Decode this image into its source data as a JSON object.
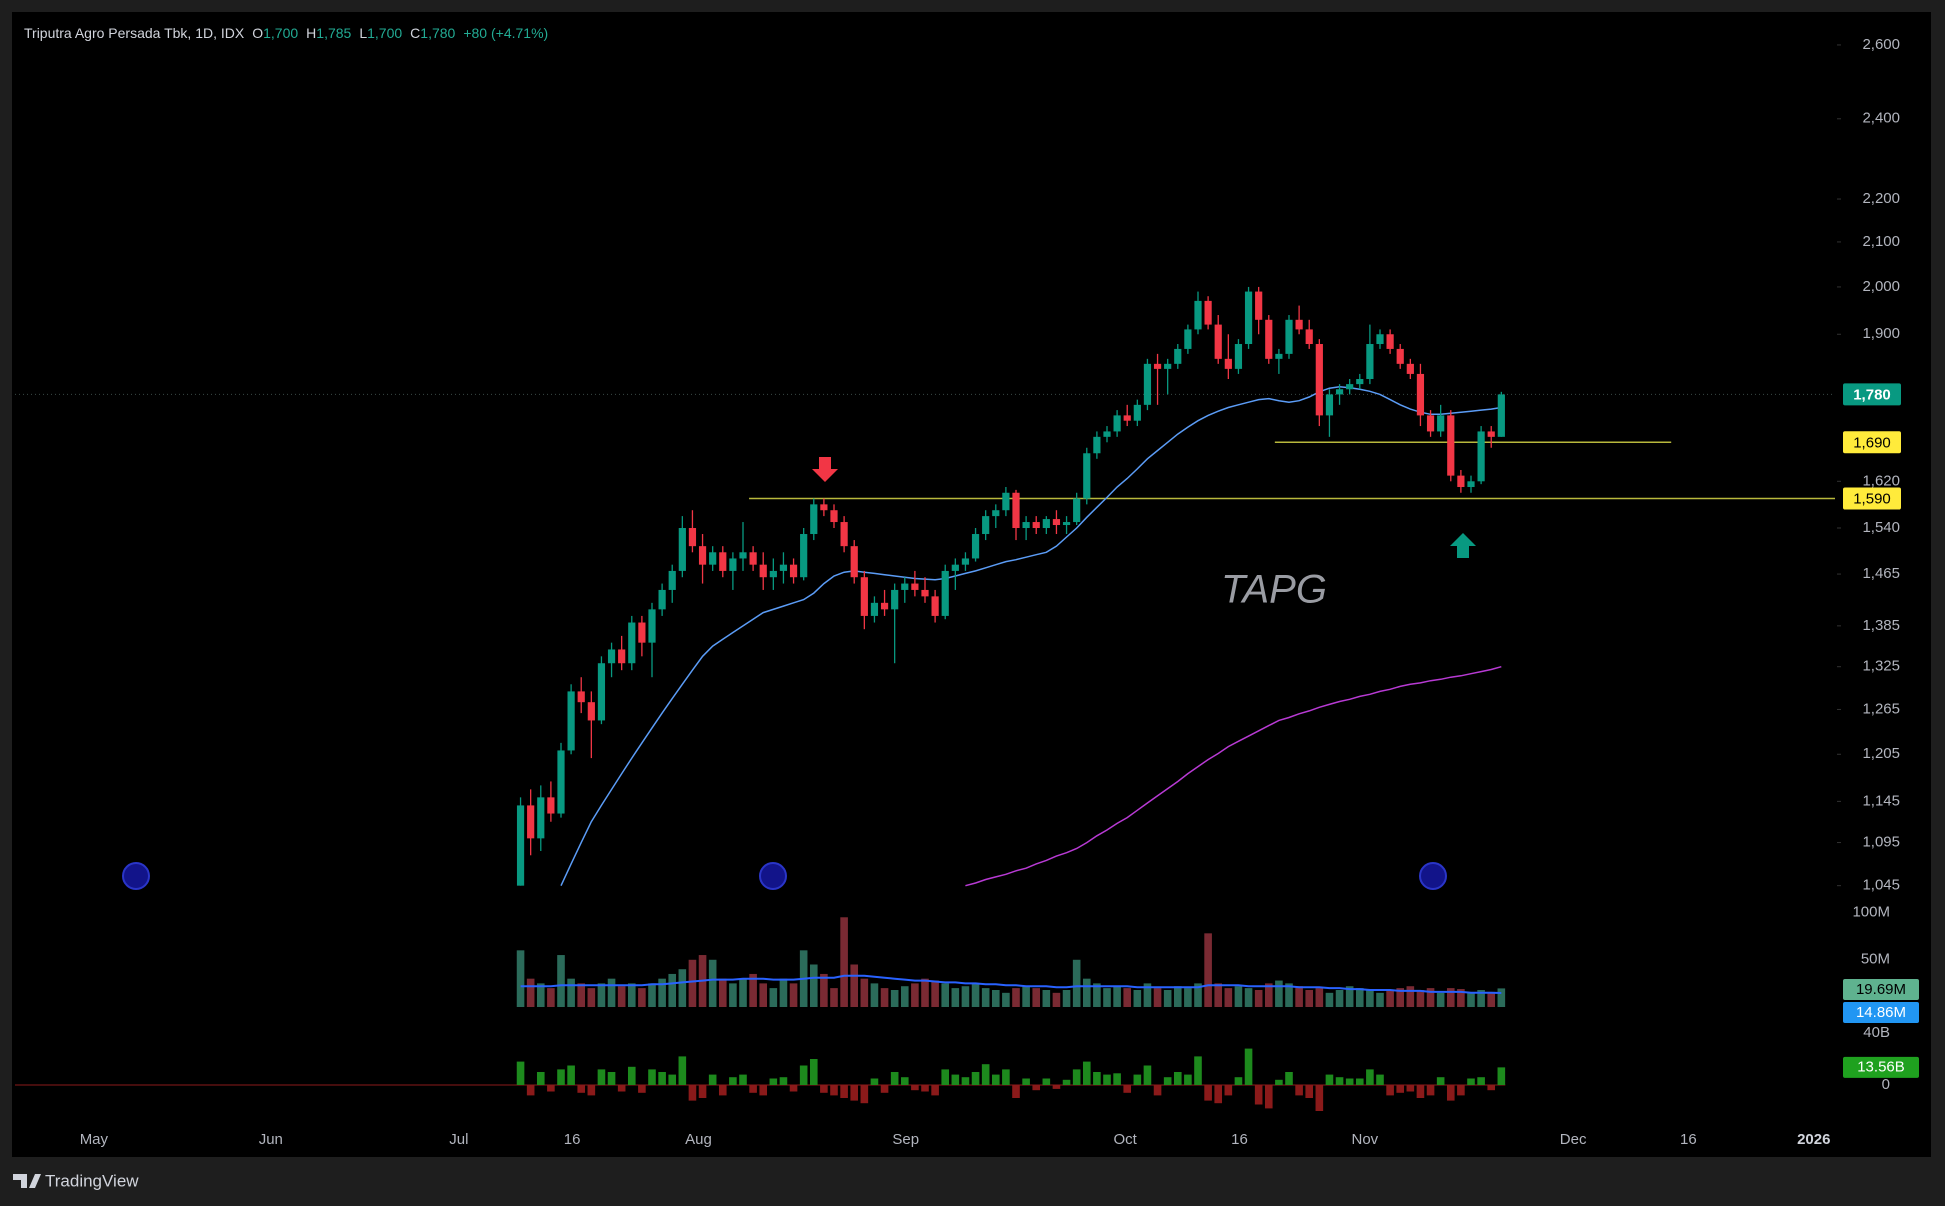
{
  "chart_data": {
    "type": "candlestick",
    "header": {
      "symbol": "Triputra Agro Persada Tbk, 1D, IDX",
      "o_label": "O",
      "open": "1,700",
      "h_label": "H",
      "high": "1,785",
      "l_label": "L",
      "low": "1,700",
      "c_label": "C",
      "close": "1,780",
      "change": "+80 (+4.71%)"
    },
    "watermark": "TAPG",
    "brand": "TradingView",
    "colors": {
      "up": "#089981",
      "down": "#f23645"
    },
    "x": [
      0,
      1,
      2,
      3,
      4,
      5,
      6,
      7,
      8,
      9,
      10,
      11,
      12,
      13,
      14,
      15,
      16,
      17,
      18,
      19,
      20,
      21,
      22,
      23,
      24,
      25,
      26,
      27,
      28,
      29,
      30,
      31,
      32,
      33,
      34,
      35,
      36,
      37,
      38,
      39,
      40,
      41,
      42,
      43,
      44,
      45,
      46,
      47,
      48,
      49,
      50,
      51,
      52,
      53,
      54,
      55,
      56,
      57,
      58,
      59,
      60,
      61,
      62,
      63,
      64,
      65,
      66,
      67,
      68,
      69,
      70,
      71,
      72,
      73,
      74,
      75,
      76,
      77,
      78,
      79,
      80,
      81,
      82,
      83,
      84,
      85,
      86,
      87,
      88,
      89,
      90,
      91,
      92,
      93,
      94,
      95,
      96,
      97
    ],
    "open": [
      1045,
      1140,
      1100,
      1150,
      1130,
      1210,
      1290,
      1275,
      1250,
      1330,
      1350,
      1330,
      1390,
      1360,
      1410,
      1440,
      1470,
      1540,
      1510,
      1480,
      1500,
      1470,
      1490,
      1500,
      1480,
      1460,
      1470,
      1480,
      1460,
      1530,
      1580,
      1570,
      1550,
      1510,
      1460,
      1400,
      1420,
      1410,
      1440,
      1450,
      1440,
      1430,
      1400,
      1470,
      1480,
      1490,
      1530,
      1560,
      1570,
      1600,
      1540,
      1550,
      1540,
      1555,
      1545,
      1550,
      1590,
      1670,
      1700,
      1710,
      1740,
      1730,
      1760,
      1840,
      1830,
      1840,
      1870,
      1910,
      1970,
      1920,
      1850,
      1830,
      1880,
      1990,
      1930,
      1850,
      1860,
      1930,
      1910,
      1880,
      1740,
      1780,
      1790,
      1800,
      1810,
      1880,
      1900,
      1870,
      1840,
      1820,
      1740,
      1710,
      1740,
      1630,
      1610,
      1620,
      1710,
      1700
    ],
    "high": [
      1150,
      1160,
      1165,
      1170,
      1220,
      1300,
      1310,
      1290,
      1340,
      1360,
      1370,
      1400,
      1400,
      1420,
      1450,
      1480,
      1560,
      1570,
      1530,
      1510,
      1510,
      1500,
      1550,
      1510,
      1500,
      1490,
      1500,
      1490,
      1540,
      1590,
      1590,
      1580,
      1560,
      1520,
      1470,
      1430,
      1440,
      1450,
      1460,
      1470,
      1460,
      1440,
      1480,
      1490,
      1500,
      1540,
      1570,
      1580,
      1610,
      1605,
      1560,
      1560,
      1560,
      1570,
      1560,
      1600,
      1680,
      1710,
      1720,
      1750,
      1760,
      1770,
      1850,
      1860,
      1850,
      1880,
      1920,
      1990,
      1980,
      1940,
      1900,
      1890,
      2000,
      2000,
      1940,
      1870,
      1940,
      1960,
      1930,
      1890,
      1790,
      1800,
      1810,
      1820,
      1920,
      1910,
      1910,
      1880,
      1850,
      1840,
      1750,
      1760,
      1750,
      1640,
      1630,
      1720,
      1720,
      1785
    ],
    "low": [
      1045,
      1080,
      1085,
      1120,
      1125,
      1205,
      1260,
      1200,
      1245,
      1310,
      1320,
      1320,
      1340,
      1310,
      1400,
      1420,
      1460,
      1500,
      1450,
      1470,
      1460,
      1440,
      1470,
      1470,
      1440,
      1440,
      1450,
      1450,
      1455,
      1520,
      1560,
      1540,
      1500,
      1450,
      1380,
      1390,
      1400,
      1330,
      1420,
      1430,
      1420,
      1390,
      1395,
      1440,
      1470,
      1485,
      1520,
      1540,
      1560,
      1520,
      1520,
      1530,
      1530,
      1530,
      1530,
      1545,
      1580,
      1660,
      1690,
      1700,
      1720,
      1720,
      1750,
      1760,
      1780,
      1830,
      1860,
      1900,
      1910,
      1840,
      1810,
      1820,
      1870,
      1900,
      1840,
      1820,
      1850,
      1900,
      1870,
      1720,
      1700,
      1760,
      1780,
      1790,
      1800,
      1870,
      1860,
      1830,
      1810,
      1720,
      1700,
      1700,
      1620,
      1600,
      1600,
      1615,
      1680,
      1700
    ],
    "close": [
      1140,
      1100,
      1150,
      1130,
      1210,
      1290,
      1275,
      1250,
      1330,
      1350,
      1330,
      1390,
      1360,
      1410,
      1440,
      1470,
      1540,
      1510,
      1480,
      1500,
      1470,
      1490,
      1500,
      1480,
      1460,
      1470,
      1480,
      1460,
      1530,
      1580,
      1570,
      1550,
      1510,
      1460,
      1400,
      1420,
      1410,
      1440,
      1450,
      1440,
      1430,
      1400,
      1470,
      1480,
      1490,
      1530,
      1560,
      1570,
      1600,
      1540,
      1550,
      1540,
      1555,
      1545,
      1550,
      1590,
      1670,
      1700,
      1710,
      1740,
      1730,
      1760,
      1840,
      1830,
      1840,
      1870,
      1910,
      1970,
      1920,
      1850,
      1830,
      1880,
      1990,
      1930,
      1850,
      1860,
      1930,
      1910,
      1880,
      1740,
      1780,
      1790,
      1800,
      1810,
      1880,
      1900,
      1870,
      1840,
      1820,
      1740,
      1710,
      1740,
      1630,
      1610,
      1620,
      1710,
      1700,
      1780
    ],
    "ylim": [
      1030,
      2680
    ],
    "log_scale": true,
    "grid": false,
    "yticks": [
      {
        "value": 1045,
        "label": "1,045"
      },
      {
        "value": 1095,
        "label": "1,095"
      },
      {
        "value": 1145,
        "label": "1,145"
      },
      {
        "value": 1205,
        "label": "1,205"
      },
      {
        "value": 1265,
        "label": "1,265"
      },
      {
        "value": 1325,
        "label": "1,325"
      },
      {
        "value": 1385,
        "label": "1,385"
      },
      {
        "value": 1465,
        "label": "1,465"
      },
      {
        "value": 1540,
        "label": "1,540"
      },
      {
        "value": 1620,
        "label": "1,620"
      },
      {
        "value": 1900,
        "label": "1,900"
      },
      {
        "value": 2000,
        "label": "2,000"
      },
      {
        "value": 2100,
        "label": "2,100"
      },
      {
        "value": 2200,
        "label": "2,200"
      },
      {
        "value": 2400,
        "label": "2,400"
      },
      {
        "value": 2600,
        "label": "2,600"
      }
    ],
    "xlim": [
      -50,
      130
    ],
    "xticks": [
      {
        "value": -42.2,
        "label": "May"
      },
      {
        "value": -24.7,
        "label": "Jun"
      },
      {
        "value": -6.1,
        "label": "Jul"
      },
      {
        "value": 5.1,
        "label": "16"
      },
      {
        "value": 17.6,
        "label": "Aug"
      },
      {
        "value": 38.1,
        "label": "Sep"
      },
      {
        "value": 59.8,
        "label": "Oct"
      },
      {
        "value": 71.1,
        "label": "16"
      },
      {
        "value": 83.5,
        "label": "Nov"
      },
      {
        "value": 104.1,
        "label": "Dec"
      },
      {
        "value": 115.5,
        "label": "16"
      },
      {
        "value": 127.9,
        "label": "2026"
      }
    ],
    "ma_lines": [
      {
        "color": "#5b9cf6",
        "values": [
          null,
          null,
          null,
          null,
          1045,
          1070,
          1095,
          1120,
          1140,
          1160,
          1180,
          1200,
          1220,
          1240,
          1260,
          1280,
          1300,
          1320,
          1340,
          1355,
          1365,
          1375,
          1385,
          1395,
          1405,
          1410,
          1415,
          1420,
          1425,
          1435,
          1450,
          1462,
          1468,
          1470,
          1468,
          1466,
          1464,
          1462,
          1460,
          1458,
          1457,
          1456,
          1458,
          1462,
          1466,
          1470,
          1475,
          1480,
          1485,
          1488,
          1492,
          1496,
          1500,
          1510,
          1525,
          1540,
          1558,
          1575,
          1592,
          1610,
          1625,
          1642,
          1660,
          1675,
          1690,
          1705,
          1718,
          1730,
          1740,
          1748,
          1755,
          1760,
          1765,
          1770,
          1772,
          1768,
          1765,
          1768,
          1775,
          1785,
          1792,
          1795,
          1793,
          1790,
          1786,
          1780,
          1770,
          1760,
          1752,
          1746,
          1742,
          1742,
          1744,
          1746,
          1748,
          1750,
          1752,
          1755
        ]
      },
      {
        "color": "#b83ad4",
        "values": [
          null,
          null,
          null,
          null,
          null,
          null,
          null,
          null,
          null,
          null,
          null,
          null,
          null,
          null,
          null,
          null,
          null,
          null,
          null,
          null,
          null,
          null,
          null,
          null,
          null,
          null,
          null,
          null,
          null,
          null,
          null,
          null,
          null,
          null,
          null,
          null,
          null,
          null,
          null,
          null,
          null,
          null,
          null,
          null,
          1045,
          1048,
          1052,
          1055,
          1058,
          1062,
          1065,
          1070,
          1074,
          1079,
          1083,
          1088,
          1095,
          1103,
          1110,
          1118,
          1125,
          1134,
          1143,
          1152,
          1161,
          1170,
          1180,
          1189,
          1198,
          1206,
          1215,
          1222,
          1229,
          1236,
          1243,
          1250,
          1254,
          1259,
          1263,
          1268,
          1272,
          1276,
          1279,
          1283,
          1286,
          1290,
          1293,
          1297,
          1300,
          1302,
          1305,
          1307,
          1310,
          1312,
          1315,
          1318,
          1321,
          1325
        ]
      }
    ],
    "levels": [
      {
        "value": 1690,
        "label": "1,690",
        "color": "#b8b83c"
      },
      {
        "value": 1590,
        "label": "1,590",
        "color": "#b8b83c"
      }
    ],
    "last_price": {
      "value": 1780,
      "label": "1,780"
    },
    "volume": {
      "values": [
        60,
        30,
        25,
        20,
        55,
        30,
        25,
        20,
        25,
        30,
        22,
        25,
        20,
        25,
        30,
        35,
        40,
        50,
        55,
        50,
        30,
        25,
        30,
        35,
        25,
        20,
        30,
        25,
        60,
        45,
        35,
        20,
        95,
        45,
        30,
        25,
        20,
        18,
        22,
        25,
        30,
        28,
        25,
        20,
        22,
        25,
        20,
        18,
        15,
        20,
        22,
        20,
        18,
        15,
        18,
        50,
        30,
        25,
        20,
        22,
        20,
        18,
        25,
        20,
        18,
        22,
        20,
        25,
        78,
        25,
        20,
        22,
        20,
        18,
        25,
        28,
        25,
        22,
        18,
        20,
        15,
        18,
        22,
        20,
        18,
        15,
        18,
        20,
        22,
        18,
        20,
        15,
        20,
        19,
        15,
        18,
        16,
        19.69
      ],
      "last_label": "19.69M",
      "ma": [
        22,
        22,
        22,
        22,
        23,
        23,
        23,
        23,
        23,
        23,
        23,
        23,
        23,
        24,
        24,
        25,
        26,
        27,
        28,
        29,
        29,
        29,
        30,
        30,
        30,
        29,
        29,
        29,
        30,
        31,
        31,
        31,
        33,
        33,
        33,
        32,
        31,
        30,
        29,
        28,
        28,
        27,
        26,
        26,
        25,
        25,
        24,
        24,
        23,
        23,
        22,
        22,
        22,
        21,
        21,
        22,
        22,
        22,
        22,
        22,
        22,
        21,
        21,
        21,
        21,
        21,
        21,
        21,
        23,
        23,
        23,
        23,
        22,
        22,
        22,
        22,
        22,
        21,
        21,
        21,
        20,
        20,
        19,
        19,
        18,
        18,
        18,
        17,
        17,
        17,
        16,
        16,
        16,
        16,
        15,
        15,
        15,
        14.86
      ],
      "ma_color": "#2962ff",
      "ma_label": "14.86M",
      "ylim": [
        0,
        108
      ],
      "yticks": [
        {
          "value": 50,
          "label": "50M"
        },
        {
          "value": 100,
          "label": "100M"
        }
      ]
    },
    "flow": {
      "values": [
        18,
        -8,
        10,
        -5,
        12,
        15,
        -6,
        -8,
        12,
        10,
        -5,
        14,
        -6,
        12,
        10,
        8,
        22,
        -12,
        -10,
        8,
        -8,
        6,
        8,
        -6,
        -8,
        5,
        6,
        -5,
        15,
        20,
        -6,
        -8,
        -10,
        -12,
        -14,
        5,
        -6,
        10,
        6,
        -4,
        -5,
        -8,
        12,
        8,
        6,
        10,
        16,
        8,
        12,
        -10,
        5,
        -4,
        5,
        -3,
        4,
        12,
        18,
        10,
        8,
        9,
        -6,
        8,
        15,
        -8,
        6,
        10,
        8,
        22,
        -12,
        -14,
        -8,
        6,
        28,
        -15,
        -18,
        4,
        10,
        -8,
        -10,
        -20,
        8,
        6,
        5,
        5,
        12,
        8,
        -8,
        -6,
        -5,
        -10,
        -8,
        6,
        -12,
        -8,
        5,
        6,
        -4,
        13.56
      ],
      "last_label": "13.56B",
      "ylim": [
        -30,
        45
      ],
      "yticks": [
        0,
        {
          "value": 40,
          "label": "40B"
        }
      ]
    }
  }
}
